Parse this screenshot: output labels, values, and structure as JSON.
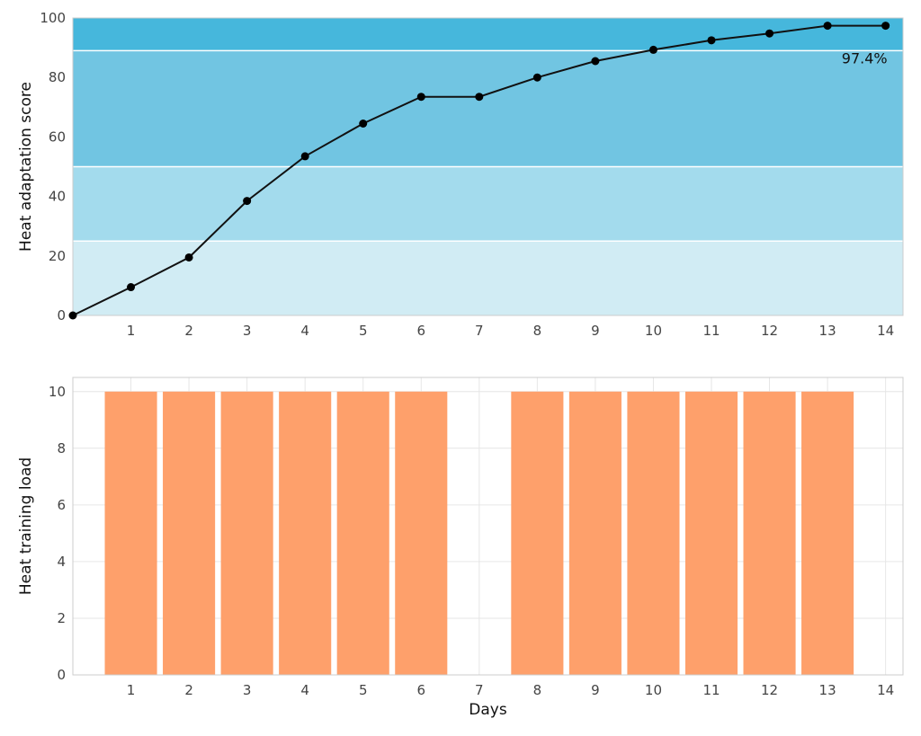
{
  "chart_data": [
    {
      "type": "line",
      "ylabel": "Heat adaptation score",
      "xlabel": "",
      "xlim": [
        0,
        14.3
      ],
      "ylim": [
        0,
        100
      ],
      "x_ticks": [
        1,
        2,
        3,
        4,
        5,
        6,
        7,
        8,
        9,
        10,
        11,
        12,
        13,
        14
      ],
      "y_ticks": [
        0,
        20,
        40,
        60,
        80,
        100
      ],
      "bands": [
        {
          "from": 0,
          "to": 25,
          "color": "#d1ecf4"
        },
        {
          "from": 25,
          "to": 50,
          "color": "#a3dbed"
        },
        {
          "from": 50,
          "to": 89,
          "color": "#71c5e2"
        },
        {
          "from": 89,
          "to": 100,
          "color": "#46b7dc"
        }
      ],
      "x": [
        0,
        1,
        2,
        3,
        4,
        5,
        6,
        7,
        8,
        9,
        10,
        11,
        12,
        13,
        14
      ],
      "y": [
        0,
        9.5,
        19.5,
        38.5,
        53.5,
        64.5,
        73.5,
        73.5,
        80,
        85.5,
        89.3,
        92.5,
        94.8,
        97.4,
        97.4
      ],
      "line_color": "#111111",
      "annotation": {
        "text": "97.4%",
        "x": 14,
        "y": 97.4
      }
    },
    {
      "type": "bar",
      "ylabel": "Heat training load",
      "xlabel": "Days",
      "xlim": [
        0,
        14.3
      ],
      "ylim": [
        0,
        10.5
      ],
      "categories": [
        1,
        2,
        3,
        4,
        5,
        6,
        7,
        8,
        9,
        10,
        11,
        12,
        13,
        14
      ],
      "values": [
        10,
        10,
        10,
        10,
        10,
        10,
        0,
        10,
        10,
        10,
        10,
        10,
        10,
        0
      ],
      "y_ticks": [
        0,
        2,
        4,
        6,
        8,
        10
      ],
      "grid": true,
      "bar_color": "#fea06b"
    }
  ]
}
